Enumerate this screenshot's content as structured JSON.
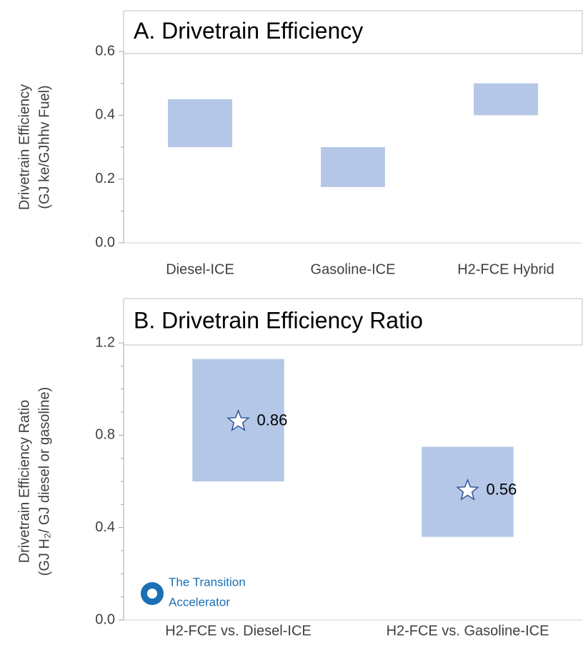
{
  "chart_data": [
    {
      "type": "floating_bar",
      "title": "A. Drivetrain Efficiency",
      "y_label": [
        "Drivetrain Efficiency",
        "(GJ ke/GJhhv Fuel)"
      ],
      "categories": [
        "Diesel-ICE",
        "Gasoline-ICE",
        "H2-FCE Hybrid"
      ],
      "low": [
        0.3,
        0.175,
        0.4
      ],
      "high": [
        0.45,
        0.3,
        0.5
      ],
      "color": "#b4c7e7",
      "ylim": [
        0,
        0.6
      ],
      "yticks": [
        {
          "value": 0,
          "label": "0.0"
        },
        0.2,
        0.4,
        0.6
      ],
      "minor_yticks": [
        0.1,
        0.3,
        0.5
      ]
    },
    {
      "type": "floating_bar",
      "title": "B. Drivetrain Efficiency Ratio",
      "y_label": [
        "Drivetrain Efficiency Ratio",
        "(GJ H₂/ GJ diesel or gasoline)"
      ],
      "categories": [
        "H2-FCE vs. Diesel-ICE",
        "H2-FCE vs. Gasoline-ICE"
      ],
      "low": [
        0.6,
        0.36
      ],
      "high": [
        1.13,
        0.75
      ],
      "markers": [
        0.86,
        0.56
      ],
      "color": "#b4c7e7",
      "marker_color": "#2f5597",
      "ylim": [
        0,
        1.2
      ],
      "yticks": [
        {
          "value": 0,
          "label": "0.0"
        },
        0.4,
        0.8,
        1.2
      ],
      "minor_yticks": [
        0.1,
        0.2,
        0.3,
        0.5,
        0.6,
        0.7,
        0.9,
        1.0,
        1.1
      ]
    }
  ],
  "logo": {
    "lines": [
      "The Transition",
      "Accelerator"
    ]
  }
}
